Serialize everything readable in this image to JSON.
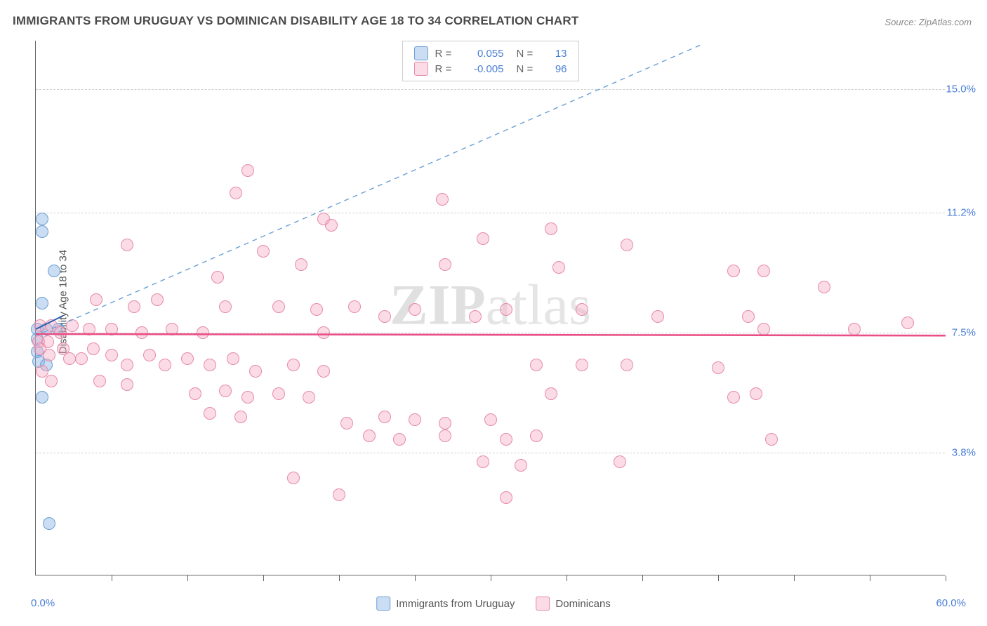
{
  "title": "IMMIGRANTS FROM URUGUAY VS DOMINICAN DISABILITY AGE 18 TO 34 CORRELATION CHART",
  "source": "Source: ZipAtlas.com",
  "watermark": {
    "bold": "ZIP",
    "light": "atlas"
  },
  "ylabel": "Disability Age 18 to 34",
  "chart": {
    "type": "scatter",
    "xlim": [
      0.0,
      60.0
    ],
    "ylim": [
      0.0,
      16.5
    ],
    "yticks": [
      3.8,
      7.5,
      11.2,
      15.0
    ],
    "ytick_labels": [
      "3.8%",
      "7.5%",
      "11.2%",
      "15.0%"
    ],
    "xmin_label": "0.0%",
    "xmax_label": "60.0%",
    "xticks_count": 12,
    "background": "#ffffff",
    "grid_color": "#d0d0d0",
    "axis_color": "#666666",
    "marker_radius": 9,
    "series": [
      {
        "name": "Immigrants from Uruguay",
        "fill": "rgba(138,179,227,0.45)",
        "stroke": "#6a9fd4",
        "R": "0.055",
        "N": "13",
        "regression": {
          "y": 7.6,
          "slope": 0.23,
          "color": "#2b5fb0",
          "width": 2,
          "solid": true,
          "length_pct": 3
        },
        "diagonal": {
          "color": "#6a9fd4",
          "dash": "7 6",
          "width": 1.4
        },
        "points": [
          {
            "x": 0.4,
            "y": 11.0
          },
          {
            "x": 0.4,
            "y": 10.6
          },
          {
            "x": 1.2,
            "y": 9.4
          },
          {
            "x": 0.4,
            "y": 8.4
          },
          {
            "x": 0.1,
            "y": 7.6
          },
          {
            "x": 0.1,
            "y": 7.3
          },
          {
            "x": 0.7,
            "y": 7.6
          },
          {
            "x": 1.5,
            "y": 7.6
          },
          {
            "x": 0.1,
            "y": 6.9
          },
          {
            "x": 0.2,
            "y": 6.6
          },
          {
            "x": 0.7,
            "y": 6.5
          },
          {
            "x": 0.4,
            "y": 5.5
          },
          {
            "x": 0.9,
            "y": 1.6
          }
        ]
      },
      {
        "name": "Dominicans",
        "fill": "rgba(246,170,195,0.42)",
        "stroke": "#e68aa7",
        "R": "-0.005",
        "N": "96",
        "regression": {
          "y": 7.45,
          "slope": -0.0008,
          "color": "#e94f86",
          "width": 2.6,
          "solid": true,
          "length_pct": 100
        },
        "points": [
          {
            "x": 14.0,
            "y": 12.5
          },
          {
            "x": 13.2,
            "y": 11.8
          },
          {
            "x": 26.8,
            "y": 11.6
          },
          {
            "x": 19.0,
            "y": 11.0
          },
          {
            "x": 19.5,
            "y": 10.8
          },
          {
            "x": 34.0,
            "y": 10.7
          },
          {
            "x": 29.5,
            "y": 10.4
          },
          {
            "x": 6.0,
            "y": 10.2
          },
          {
            "x": 39.0,
            "y": 10.2
          },
          {
            "x": 15.0,
            "y": 10.0
          },
          {
            "x": 17.5,
            "y": 9.6
          },
          {
            "x": 27.0,
            "y": 9.6
          },
          {
            "x": 34.5,
            "y": 9.5
          },
          {
            "x": 46.0,
            "y": 9.4
          },
          {
            "x": 48.0,
            "y": 9.4
          },
          {
            "x": 12.0,
            "y": 9.2
          },
          {
            "x": 52.0,
            "y": 8.9
          },
          {
            "x": 4.0,
            "y": 8.5
          },
          {
            "x": 6.5,
            "y": 8.3
          },
          {
            "x": 8.0,
            "y": 8.5
          },
          {
            "x": 12.5,
            "y": 8.3
          },
          {
            "x": 16.0,
            "y": 8.3
          },
          {
            "x": 18.5,
            "y": 8.2
          },
          {
            "x": 21.0,
            "y": 8.3
          },
          {
            "x": 23.0,
            "y": 8.0
          },
          {
            "x": 25.0,
            "y": 8.2
          },
          {
            "x": 29.0,
            "y": 8.0
          },
          {
            "x": 31.0,
            "y": 8.2
          },
          {
            "x": 36.0,
            "y": 8.2
          },
          {
            "x": 41.0,
            "y": 8.0
          },
          {
            "x": 47.0,
            "y": 8.0
          },
          {
            "x": 0.3,
            "y": 7.7
          },
          {
            "x": 1.0,
            "y": 7.7
          },
          {
            "x": 1.6,
            "y": 7.5
          },
          {
            "x": 2.4,
            "y": 7.7
          },
          {
            "x": 3.5,
            "y": 7.6
          },
          {
            "x": 5.0,
            "y": 7.6
          },
          {
            "x": 7.0,
            "y": 7.5
          },
          {
            "x": 9.0,
            "y": 7.6
          },
          {
            "x": 11.0,
            "y": 7.5
          },
          {
            "x": 19.0,
            "y": 7.5
          },
          {
            "x": 48.0,
            "y": 7.6
          },
          {
            "x": 54.0,
            "y": 7.6
          },
          {
            "x": 57.5,
            "y": 7.8
          },
          {
            "x": 0.2,
            "y": 7.2
          },
          {
            "x": 0.8,
            "y": 7.2
          },
          {
            "x": 1.8,
            "y": 7.0
          },
          {
            "x": 2.2,
            "y": 6.7
          },
          {
            "x": 3.0,
            "y": 6.7
          },
          {
            "x": 3.8,
            "y": 7.0
          },
          {
            "x": 5.0,
            "y": 6.8
          },
          {
            "x": 6.0,
            "y": 6.5
          },
          {
            "x": 7.5,
            "y": 6.8
          },
          {
            "x": 8.5,
            "y": 6.5
          },
          {
            "x": 10.0,
            "y": 6.7
          },
          {
            "x": 11.5,
            "y": 6.5
          },
          {
            "x": 13.0,
            "y": 6.7
          },
          {
            "x": 14.5,
            "y": 6.3
          },
          {
            "x": 17.0,
            "y": 6.5
          },
          {
            "x": 19.0,
            "y": 6.3
          },
          {
            "x": 33.0,
            "y": 6.5
          },
          {
            "x": 36.0,
            "y": 6.5
          },
          {
            "x": 39.0,
            "y": 6.5
          },
          {
            "x": 45.0,
            "y": 6.4
          },
          {
            "x": 4.2,
            "y": 6.0
          },
          {
            "x": 6.0,
            "y": 5.9
          },
          {
            "x": 10.5,
            "y": 5.6
          },
          {
            "x": 12.5,
            "y": 5.7
          },
          {
            "x": 14.0,
            "y": 5.5
          },
          {
            "x": 16.0,
            "y": 5.6
          },
          {
            "x": 18.0,
            "y": 5.5
          },
          {
            "x": 34.0,
            "y": 5.6
          },
          {
            "x": 46.0,
            "y": 5.5
          },
          {
            "x": 47.5,
            "y": 5.6
          },
          {
            "x": 11.5,
            "y": 5.0
          },
          {
            "x": 13.5,
            "y": 4.9
          },
          {
            "x": 20.5,
            "y": 4.7
          },
          {
            "x": 23.0,
            "y": 4.9
          },
          {
            "x": 25.0,
            "y": 4.8
          },
          {
            "x": 27.0,
            "y": 4.7
          },
          {
            "x": 30.0,
            "y": 4.8
          },
          {
            "x": 22.0,
            "y": 4.3
          },
          {
            "x": 24.0,
            "y": 4.2
          },
          {
            "x": 27.0,
            "y": 4.3
          },
          {
            "x": 31.0,
            "y": 4.2
          },
          {
            "x": 33.0,
            "y": 4.3
          },
          {
            "x": 38.5,
            "y": 3.5
          },
          {
            "x": 48.5,
            "y": 4.2
          },
          {
            "x": 29.5,
            "y": 3.5
          },
          {
            "x": 32.0,
            "y": 3.4
          },
          {
            "x": 17.0,
            "y": 3.0
          },
          {
            "x": 20.0,
            "y": 2.5
          },
          {
            "x": 31.0,
            "y": 2.4
          },
          {
            "x": 0.3,
            "y": 7.0
          },
          {
            "x": 0.9,
            "y": 6.8
          },
          {
            "x": 0.4,
            "y": 6.3
          },
          {
            "x": 1.0,
            "y": 6.0
          }
        ]
      }
    ]
  }
}
